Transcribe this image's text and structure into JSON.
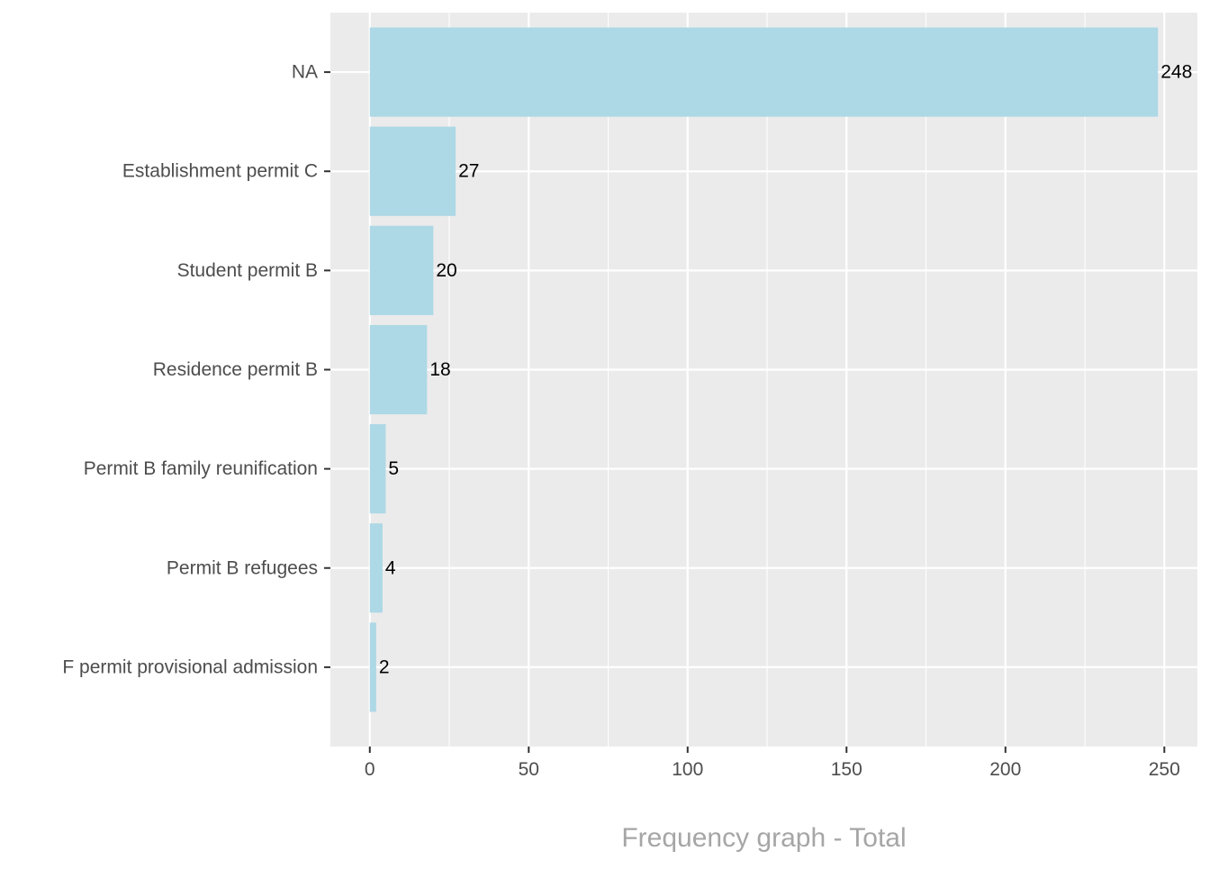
{
  "chart_data": {
    "type": "bar",
    "orientation": "horizontal",
    "categories": [
      "NA",
      "Establishment permit C",
      "Student permit B",
      "Residence permit B",
      "Permit B family reunification",
      "Permit B refugees",
      "F permit provisional admission"
    ],
    "values": [
      248,
      27,
      20,
      18,
      5,
      4,
      2
    ],
    "data_labels": [
      "248",
      "27",
      "20",
      "18",
      "5",
      "4",
      "2"
    ],
    "x_ticks": [
      0,
      50,
      100,
      150,
      200,
      250
    ],
    "x_tick_labels": [
      "0",
      "50",
      "100",
      "150",
      "200",
      "250"
    ],
    "xlim": [
      -12.4,
      260.4
    ],
    "title": "",
    "xlabel": "Frequency graph - Total",
    "ylabel": "",
    "grid": true,
    "legend": "none"
  },
  "colors": {
    "panel_background": "#ebebeb",
    "grid_major": "#ffffff",
    "bar_fill": "#add8e6",
    "axis_text": "#4d4d4d",
    "data_label_text": "#000000",
    "x_title_text": "#a6a6a6",
    "tick_mark": "#333333"
  }
}
